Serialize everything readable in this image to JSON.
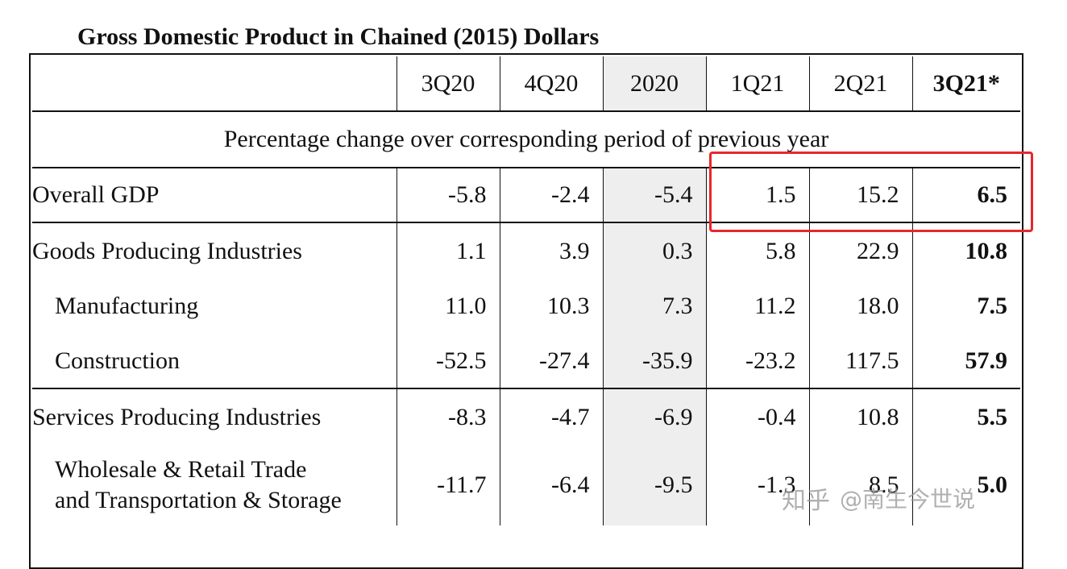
{
  "title": "Gross Domestic Product in Chained (2015) Dollars",
  "columns": [
    "3Q20",
    "4Q20",
    "2020",
    "1Q21",
    "2Q21",
    "3Q21*"
  ],
  "subheader": "Percentage change over corresponding period of previous year",
  "rows": [
    {
      "label": "Overall GDP",
      "values": [
        "-5.8",
        "-2.4",
        "-5.4",
        "1.5",
        "15.2",
        "6.5"
      ]
    },
    {
      "label": "Goods Producing Industries",
      "values": [
        "1.1",
        "3.9",
        "0.3",
        "5.8",
        "22.9",
        "10.8"
      ]
    },
    {
      "label": "Manufacturing",
      "values": [
        "11.0",
        "10.3",
        "7.3",
        "11.2",
        "18.0",
        "7.5"
      ]
    },
    {
      "label": "Construction",
      "values": [
        "-52.5",
        "-27.4",
        "-35.9",
        "-23.2",
        "117.5",
        "57.9"
      ]
    },
    {
      "label": "Services Producing Industries",
      "values": [
        "-8.3",
        "-4.7",
        "-6.9",
        "-0.4",
        "10.8",
        "5.5"
      ]
    },
    {
      "label_line1": "Wholesale & Retail Trade",
      "label_line2": "and Transportation & Storage",
      "values": [
        "-11.7",
        "-6.4",
        "-9.5",
        "-1.3",
        "8.5",
        "5.0"
      ]
    }
  ],
  "watermark": {
    "text": "知乎",
    "handle": "@南生今世说"
  },
  "colors": {
    "highlight": "#e8262b",
    "shade": "#eeeeee"
  }
}
